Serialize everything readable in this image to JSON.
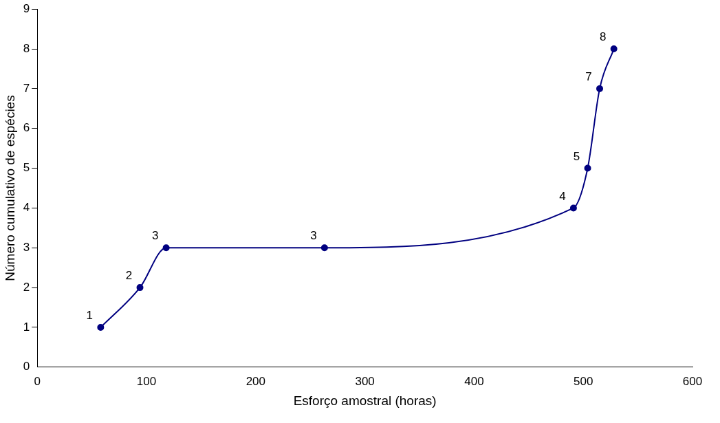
{
  "chart_data": {
    "type": "line",
    "xlabel": "Esforço amostral (horas)",
    "ylabel": "Número cumulativo de espécies",
    "x": [
      58,
      94,
      118,
      263,
      491,
      504,
      515,
      528
    ],
    "series": [
      {
        "color": "#000080",
        "values": [
          1,
          2,
          3,
          3,
          4,
          5,
          7,
          8
        ]
      }
    ],
    "xlim": [
      0,
      600
    ],
    "xticks": [
      0,
      100,
      200,
      300,
      400,
      500,
      600
    ],
    "ylim": [
      0,
      9
    ],
    "yticks": [
      0,
      1,
      2,
      3,
      4,
      5,
      6,
      7,
      8,
      9
    ],
    "grid": false,
    "legend": false,
    "marker": "circle",
    "line_style": "solid",
    "data_labels": true
  }
}
